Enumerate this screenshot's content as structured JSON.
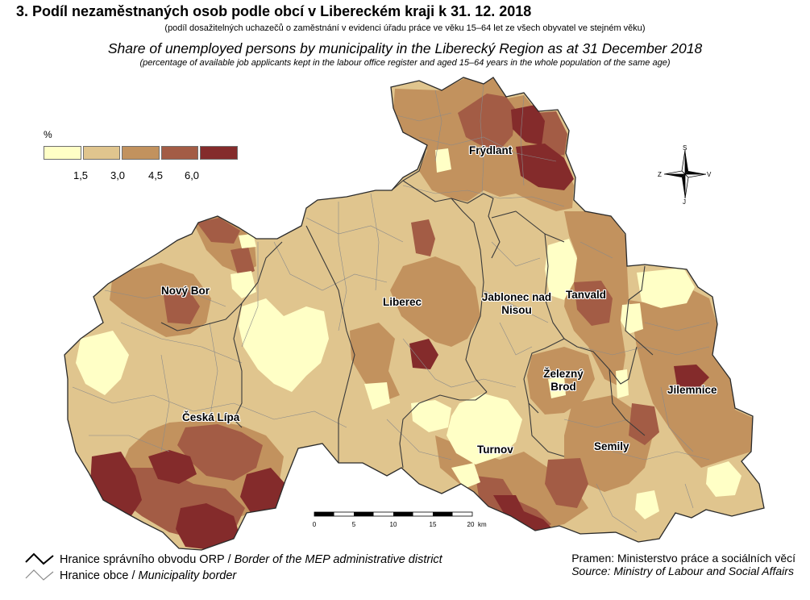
{
  "title": "3. Podíl nezaměstnaných osob podle obcí v Libereckém kraji k 31. 12. 2018",
  "subtitle_cz": "(podíl dosažitelných uchazečů o zaměstnání v evidenci úřadu práce ve věku 15–64 let ze všech obyvatel ve stejném věku)",
  "title_en": "Share of unemployed persons by municipality in the Liberecký Region as at 31 December 2018",
  "subtitle_en": "(percentage of available job applicants kept in the labour office register and aged 15–64 years in the whole population of the same age)",
  "legend": {
    "unit": "%",
    "classes": [
      {
        "color": "#ffffc6"
      },
      {
        "color": "#e0c58e"
      },
      {
        "color": "#c2925e"
      },
      {
        "color": "#a35c45"
      },
      {
        "color": "#842b2b"
      }
    ],
    "breaks": [
      "1,5",
      "3,0",
      "4,5",
      "6,0"
    ]
  },
  "towns": [
    {
      "name": "Frýdlant"
    },
    {
      "name": "Nový Bor"
    },
    {
      "name": "Liberec"
    },
    {
      "name": "Jablonec nad Nisou"
    },
    {
      "name": "Tanvald"
    },
    {
      "name": "Železný Brod"
    },
    {
      "name": "Jilemnice"
    },
    {
      "name": "Česká Lípa"
    },
    {
      "name": "Turnov"
    },
    {
      "name": "Semily"
    }
  ],
  "compass": {
    "n": "S",
    "e": "V",
    "s": "J",
    "w": "Z"
  },
  "scale": {
    "ticks": [
      "0",
      "5",
      "10",
      "15",
      "20"
    ],
    "unit": "km"
  },
  "border_legend": {
    "orp_cz": "Hranice správního obvodu ORP",
    "orp_sep": " / ",
    "orp_en": "Border of the MEP administrative district",
    "obec_cz": "Hranice obce",
    "obec_sep": " / ",
    "obec_en": "Municipality border"
  },
  "source": {
    "cz": "Pramen: Ministerstvo práce a sociálních věcí",
    "en": "Source: Ministry of Labour and Social Affairs"
  }
}
